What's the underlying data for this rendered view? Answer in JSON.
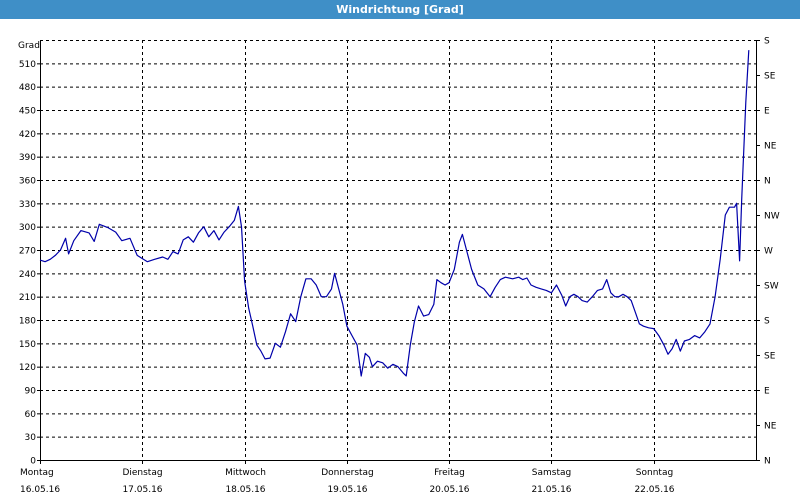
{
  "window": {
    "title": "Windrichtung [Grad]"
  },
  "chart_data": {
    "type": "line",
    "title": "Windrichtung [Grad]",
    "ylabel": "Grad",
    "xlabel": "",
    "ylim": [
      0,
      540
    ],
    "yticks": [
      0,
      30,
      60,
      90,
      120,
      150,
      180,
      210,
      240,
      270,
      300,
      330,
      360,
      390,
      420,
      450,
      480,
      510
    ],
    "right_axis_labels": [
      "S",
      "SE",
      "E",
      "NE",
      "N",
      "NW",
      "W",
      "SW",
      "S",
      "SE",
      "E",
      "NE",
      "N"
    ],
    "x_range": [
      0,
      7
    ],
    "x_categories": [
      {
        "day": "Montag",
        "date": "16.05.16"
      },
      {
        "day": "Dienstag",
        "date": "17.05.16"
      },
      {
        "day": "Mittwoch",
        "date": "18.05.16"
      },
      {
        "day": "Donnerstag",
        "date": "19.05.16"
      },
      {
        "day": "Freitag",
        "date": "20.05.16"
      },
      {
        "day": "Samstag",
        "date": "21.05.16"
      },
      {
        "day": "Sonntag",
        "date": "22.05.16"
      }
    ],
    "grid": true,
    "grid_style": "dashed",
    "colors": {
      "line": "#0000aa",
      "grid": "#000000",
      "title_bg": "#3f8fc7",
      "title_text": "#ffffff"
    },
    "series": [
      {
        "values": [
          [
            0.0,
            257
          ],
          [
            0.05,
            255
          ],
          [
            0.1,
            258
          ],
          [
            0.15,
            263
          ],
          [
            0.2,
            270
          ],
          [
            0.25,
            285
          ],
          [
            0.28,
            265
          ],
          [
            0.33,
            282
          ],
          [
            0.4,
            295
          ],
          [
            0.48,
            292
          ],
          [
            0.53,
            281
          ],
          [
            0.58,
            303
          ],
          [
            0.66,
            299
          ],
          [
            0.74,
            293
          ],
          [
            0.8,
            282
          ],
          [
            0.88,
            285
          ],
          [
            0.95,
            263
          ],
          [
            1.05,
            255
          ],
          [
            1.12,
            258
          ],
          [
            1.2,
            261
          ],
          [
            1.25,
            258
          ],
          [
            1.3,
            268
          ],
          [
            1.35,
            265
          ],
          [
            1.4,
            283
          ],
          [
            1.45,
            287
          ],
          [
            1.5,
            280
          ],
          [
            1.55,
            292
          ],
          [
            1.6,
            300
          ],
          [
            1.65,
            287
          ],
          [
            1.7,
            295
          ],
          [
            1.75,
            283
          ],
          [
            1.8,
            293
          ],
          [
            1.85,
            300
          ],
          [
            1.9,
            308
          ],
          [
            1.94,
            326
          ],
          [
            1.97,
            300
          ],
          [
            2.0,
            230
          ],
          [
            2.04,
            195
          ],
          [
            2.08,
            172
          ],
          [
            2.12,
            148
          ],
          [
            2.16,
            140
          ],
          [
            2.2,
            130
          ],
          [
            2.25,
            131
          ],
          [
            2.3,
            150
          ],
          [
            2.35,
            145
          ],
          [
            2.4,
            165
          ],
          [
            2.45,
            188
          ],
          [
            2.5,
            178
          ],
          [
            2.55,
            210
          ],
          [
            2.6,
            233
          ],
          [
            2.65,
            233
          ],
          [
            2.7,
            225
          ],
          [
            2.75,
            210
          ],
          [
            2.8,
            210
          ],
          [
            2.85,
            220
          ],
          [
            2.88,
            240
          ],
          [
            2.92,
            220
          ],
          [
            2.96,
            200
          ],
          [
            3.0,
            172
          ],
          [
            3.05,
            160
          ],
          [
            3.1,
            148
          ],
          [
            3.14,
            108
          ],
          [
            3.18,
            137
          ],
          [
            3.22,
            132
          ],
          [
            3.25,
            120
          ],
          [
            3.3,
            127
          ],
          [
            3.35,
            125
          ],
          [
            3.4,
            118
          ],
          [
            3.45,
            123
          ],
          [
            3.5,
            120
          ],
          [
            3.55,
            112
          ],
          [
            3.58,
            108
          ],
          [
            3.62,
            148
          ],
          [
            3.66,
            178
          ],
          [
            3.7,
            198
          ],
          [
            3.75,
            185
          ],
          [
            3.8,
            187
          ],
          [
            3.85,
            200
          ],
          [
            3.88,
            232
          ],
          [
            3.92,
            228
          ],
          [
            3.96,
            225
          ],
          [
            4.0,
            228
          ],
          [
            4.05,
            245
          ],
          [
            4.1,
            280
          ],
          [
            4.13,
            290
          ],
          [
            4.17,
            270
          ],
          [
            4.22,
            245
          ],
          [
            4.28,
            225
          ],
          [
            4.34,
            220
          ],
          [
            4.4,
            210
          ],
          [
            4.45,
            222
          ],
          [
            4.5,
            232
          ],
          [
            4.55,
            235
          ],
          [
            4.62,
            233
          ],
          [
            4.68,
            235
          ],
          [
            4.72,
            232
          ],
          [
            4.76,
            234
          ],
          [
            4.8,
            225
          ],
          [
            4.85,
            222
          ],
          [
            4.9,
            220
          ],
          [
            4.95,
            218
          ],
          [
            5.0,
            215
          ],
          [
            5.05,
            225
          ],
          [
            5.1,
            212
          ],
          [
            5.14,
            198
          ],
          [
            5.18,
            210
          ],
          [
            5.22,
            213
          ],
          [
            5.26,
            210
          ],
          [
            5.3,
            205
          ],
          [
            5.35,
            203
          ],
          [
            5.4,
            210
          ],
          [
            5.45,
            218
          ],
          [
            5.5,
            220
          ],
          [
            5.54,
            232
          ],
          [
            5.58,
            215
          ],
          [
            5.62,
            210
          ],
          [
            5.66,
            210
          ],
          [
            5.7,
            213
          ],
          [
            5.74,
            210
          ],
          [
            5.78,
            205
          ],
          [
            5.82,
            190
          ],
          [
            5.86,
            175
          ],
          [
            5.9,
            172
          ],
          [
            5.95,
            170
          ],
          [
            6.0,
            169
          ],
          [
            6.05,
            160
          ],
          [
            6.1,
            148
          ],
          [
            6.14,
            136
          ],
          [
            6.18,
            143
          ],
          [
            6.22,
            155
          ],
          [
            6.26,
            140
          ],
          [
            6.3,
            153
          ],
          [
            6.35,
            155
          ],
          [
            6.4,
            160
          ],
          [
            6.45,
            157
          ],
          [
            6.5,
            165
          ],
          [
            6.55,
            175
          ],
          [
            6.6,
            210
          ],
          [
            6.65,
            258
          ],
          [
            6.7,
            315
          ],
          [
            6.74,
            325
          ],
          [
            6.79,
            325
          ],
          [
            6.81,
            330
          ],
          [
            6.84,
            256
          ],
          [
            6.86,
            335
          ],
          [
            6.9,
            460
          ],
          [
            6.93,
            527
          ]
        ]
      }
    ]
  }
}
